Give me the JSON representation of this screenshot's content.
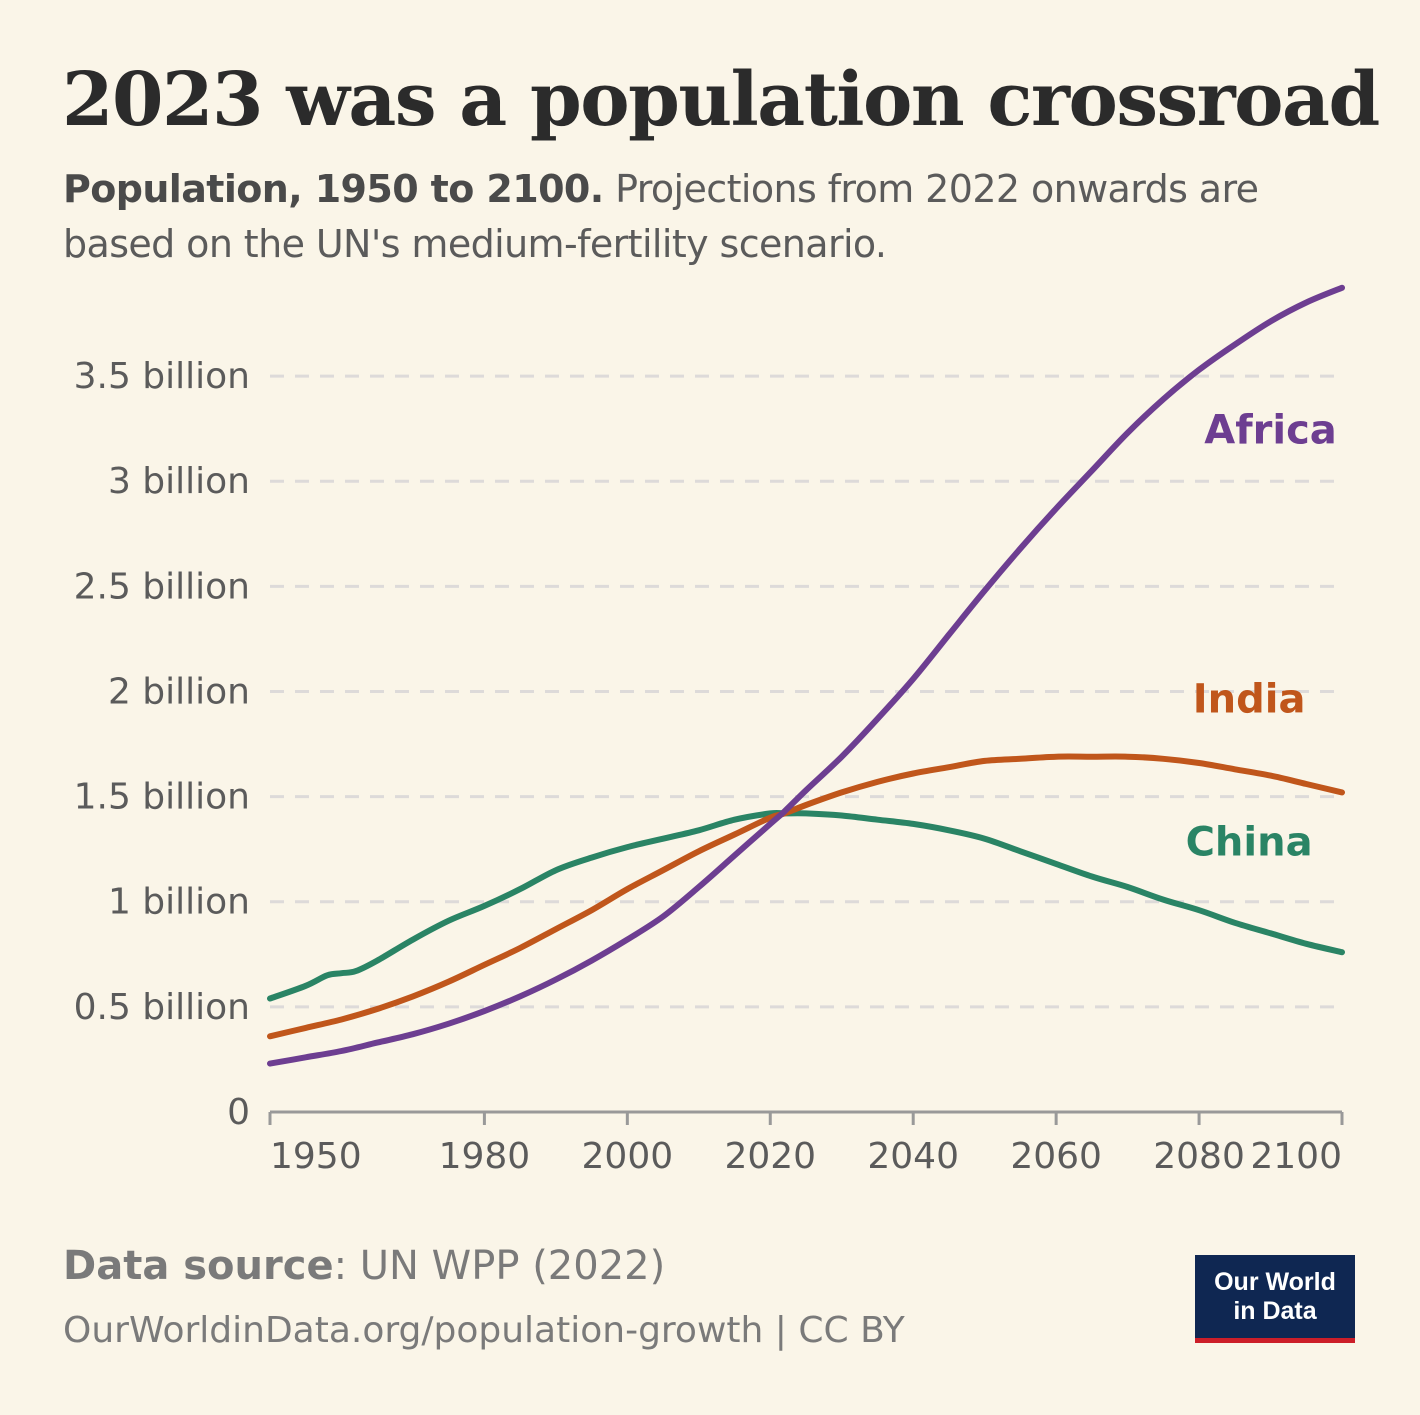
{
  "header": {
    "title": "2023 was a population crossroad",
    "subtitle_bold": "Population, 1950 to 2100.",
    "subtitle_rest": " Projections from 2022 onwards are based on the UN's medium-fertility scenario."
  },
  "footer": {
    "source_label": "Data source",
    "source_value": ": UN WPP (2022)",
    "url_line": "OurWorldinData.org/population-growth | CC BY",
    "logo_line1": "Our World",
    "logo_line2": "in Data"
  },
  "colors": {
    "africa": "#6d3e91",
    "india": "#c0561b",
    "china": "#2a8465",
    "grid": "#dddad9",
    "axis": "#999999",
    "background": "#faf5e8"
  },
  "chart_data": {
    "type": "line",
    "title": "2023 was a population crossroad",
    "xlabel": "",
    "ylabel": "",
    "xlim": [
      1950,
      2100
    ],
    "ylim": [
      0,
      3.9
    ],
    "y_ticks": [
      {
        "value": 0,
        "label": "0"
      },
      {
        "value": 0.5,
        "label": "0.5 billion"
      },
      {
        "value": 1,
        "label": "1 billion"
      },
      {
        "value": 1.5,
        "label": "1.5 billion"
      },
      {
        "value": 2,
        "label": "2 billion"
      },
      {
        "value": 2.5,
        "label": "2.5 billion"
      },
      {
        "value": 3,
        "label": "3 billion"
      },
      {
        "value": 3.5,
        "label": "3.5 billion"
      }
    ],
    "x_ticks": [
      1950,
      1980,
      2000,
      2020,
      2040,
      2060,
      2080,
      2100
    ],
    "grid": "horizontal dashed",
    "series": [
      {
        "name": "Africa",
        "color": "#6d3e91",
        "label_anchor": [
          2090,
          3.18
        ],
        "x": [
          1950,
          1955,
          1960,
          1965,
          1970,
          1975,
          1980,
          1985,
          1990,
          1995,
          2000,
          2005,
          2010,
          2015,
          2020,
          2022,
          2025,
          2030,
          2035,
          2040,
          2045,
          2050,
          2055,
          2060,
          2065,
          2070,
          2075,
          2080,
          2085,
          2090,
          2095,
          2100
        ],
        "values": [
          0.23,
          0.26,
          0.29,
          0.33,
          0.37,
          0.42,
          0.48,
          0.55,
          0.63,
          0.72,
          0.82,
          0.93,
          1.07,
          1.22,
          1.37,
          1.43,
          1.53,
          1.69,
          1.87,
          2.06,
          2.27,
          2.48,
          2.68,
          2.87,
          3.05,
          3.23,
          3.39,
          3.53,
          3.65,
          3.76,
          3.85,
          3.92
        ]
      },
      {
        "name": "India",
        "color": "#c0561b",
        "label_anchor": [
          2087,
          1.9
        ],
        "x": [
          1950,
          1955,
          1960,
          1965,
          1970,
          1975,
          1980,
          1985,
          1990,
          1995,
          2000,
          2005,
          2010,
          2015,
          2020,
          2022,
          2025,
          2030,
          2035,
          2040,
          2045,
          2050,
          2055,
          2060,
          2065,
          2070,
          2075,
          2080,
          2085,
          2090,
          2095,
          2100
        ],
        "values": [
          0.36,
          0.4,
          0.44,
          0.49,
          0.55,
          0.62,
          0.7,
          0.78,
          0.87,
          0.96,
          1.06,
          1.15,
          1.24,
          1.32,
          1.4,
          1.42,
          1.46,
          1.52,
          1.57,
          1.61,
          1.64,
          1.67,
          1.68,
          1.69,
          1.69,
          1.69,
          1.68,
          1.66,
          1.63,
          1.6,
          1.56,
          1.52
        ]
      },
      {
        "name": "China",
        "color": "#2a8465",
        "label_anchor": [
          2087,
          1.22
        ],
        "x": [
          1950,
          1955,
          1958,
          1960,
          1962,
          1965,
          1970,
          1975,
          1980,
          1985,
          1990,
          1995,
          2000,
          2005,
          2010,
          2015,
          2020,
          2022,
          2025,
          2030,
          2035,
          2040,
          2045,
          2050,
          2055,
          2060,
          2065,
          2070,
          2075,
          2080,
          2085,
          2090,
          2095,
          2100
        ],
        "values": [
          0.54,
          0.6,
          0.65,
          0.66,
          0.67,
          0.72,
          0.82,
          0.91,
          0.98,
          1.06,
          1.15,
          1.21,
          1.26,
          1.3,
          1.34,
          1.39,
          1.42,
          1.42,
          1.42,
          1.41,
          1.39,
          1.37,
          1.34,
          1.3,
          1.24,
          1.18,
          1.12,
          1.07,
          1.01,
          0.96,
          0.9,
          0.85,
          0.8,
          0.76
        ]
      }
    ]
  }
}
